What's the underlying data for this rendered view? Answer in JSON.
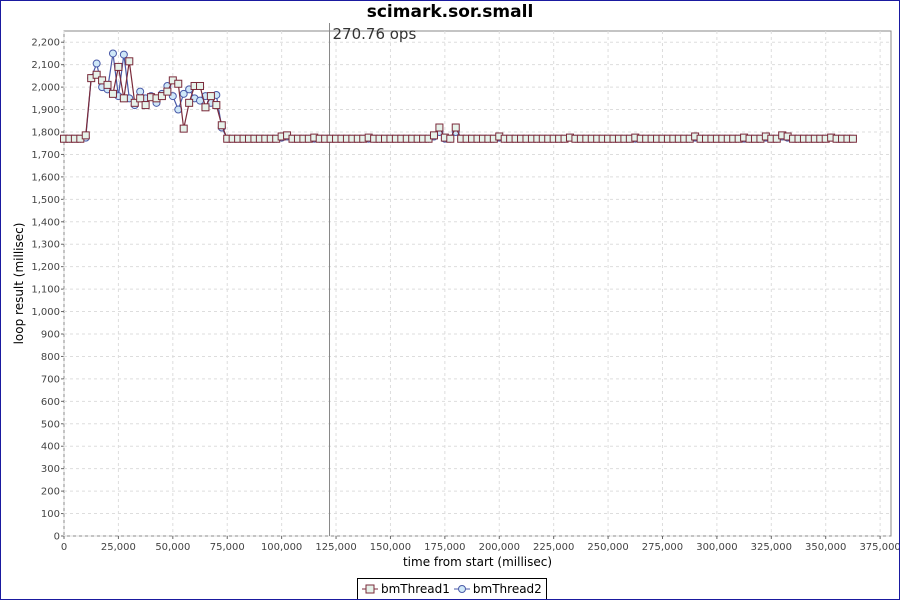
{
  "chart_data": {
    "type": "line",
    "title": "scimark.sor.small",
    "xlabel": "time from start (millisec)",
    "ylabel": "loop result (millisec)",
    "xlim": [
      0,
      380000
    ],
    "ylim": [
      0,
      2250
    ],
    "x_ticks": [
      0,
      25000,
      50000,
      75000,
      100000,
      125000,
      150000,
      175000,
      200000,
      225000,
      250000,
      275000,
      300000,
      325000,
      350000,
      375000
    ],
    "x_tick_labels": [
      "0",
      "25,000",
      "50,000",
      "75,000",
      "100,000",
      "125,000",
      "150,000",
      "175,000",
      "200,000",
      "225,000",
      "250,000",
      "275,000",
      "300,000",
      "325,000",
      "350,000",
      "375,000"
    ],
    "y_ticks": [
      0,
      100,
      200,
      300,
      400,
      500,
      600,
      700,
      800,
      900,
      1000,
      1100,
      1200,
      1300,
      1400,
      1500,
      1600,
      1700,
      1800,
      1900,
      2000,
      2100,
      2200
    ],
    "y_tick_labels": [
      "0",
      "100",
      "200",
      "300",
      "400",
      "500",
      "600",
      "700",
      "800",
      "900",
      "1,000",
      "1,100",
      "1,200",
      "1,300",
      "1,400",
      "1,500",
      "1,600",
      "1,700",
      "1,800",
      "1,900",
      "2,000",
      "2,100",
      "2,200"
    ],
    "grid": true,
    "legend_position": "bottom",
    "marker_line": {
      "x": 122000,
      "label": "270.76 ops"
    },
    "x": [
      0,
      2500,
      5000,
      7500,
      10000,
      12500,
      15000,
      17500,
      20000,
      22500,
      25000,
      27500,
      30000,
      32500,
      35000,
      37500,
      40000,
      42500,
      45000,
      47500,
      50000,
      52500,
      55000,
      57500,
      60000,
      62500,
      65000,
      67500,
      70000,
      72500,
      75000,
      77500,
      80000,
      82500,
      85000,
      87500,
      90000,
      92500,
      95000,
      97500,
      100000,
      102500,
      105000,
      107500,
      110000,
      112500,
      115000,
      117500,
      120000,
      122500,
      125000,
      127500,
      130000,
      132500,
      135000,
      137500,
      140000,
      142500,
      145000,
      147500,
      150000,
      152500,
      155000,
      157500,
      160000,
      162500,
      165000,
      167500,
      170000,
      172500,
      175000,
      177500,
      180000,
      182500,
      185000,
      187500,
      190000,
      192500,
      195000,
      197500,
      200000,
      202500,
      205000,
      207500,
      210000,
      212500,
      215000,
      217500,
      220000,
      222500,
      225000,
      227500,
      230000,
      232500,
      235000,
      237500,
      240000,
      242500,
      245000,
      247500,
      250000,
      252500,
      255000,
      257500,
      260000,
      262500,
      265000,
      267500,
      270000,
      272500,
      275000,
      277500,
      280000,
      282500,
      285000,
      287500,
      290000,
      292500,
      295000,
      297500,
      300000,
      302500,
      305000,
      307500,
      310000,
      312500,
      315000,
      317500,
      320000,
      322500,
      325000,
      327500,
      330000,
      332500,
      335000,
      337500,
      340000,
      342500,
      345000,
      347500,
      350000,
      352500,
      355000,
      357500,
      360000,
      362500
    ],
    "series": [
      {
        "name": "bmThread1",
        "color": "#7a2a3a",
        "marker": "square",
        "marker_fill": "#e6f2ea",
        "values": [
          1770,
          1770,
          1770,
          1770,
          1785,
          2040,
          2055,
          2030,
          2010,
          1970,
          2090,
          1950,
          2115,
          1930,
          1950,
          1920,
          1955,
          1950,
          1960,
          1980,
          2030,
          2015,
          1815,
          1930,
          2005,
          2005,
          1910,
          1960,
          1920,
          1830,
          1770,
          1770,
          1770,
          1770,
          1770,
          1770,
          1770,
          1770,
          1770,
          1770,
          1780,
          1785,
          1770,
          1770,
          1770,
          1770,
          1775,
          1770,
          1770,
          1770,
          1770,
          1770,
          1770,
          1770,
          1770,
          1770,
          1775,
          1770,
          1770,
          1770,
          1770,
          1770,
          1770,
          1770,
          1770,
          1770,
          1770,
          1770,
          1785,
          1820,
          1775,
          1770,
          1820,
          1770,
          1770,
          1770,
          1770,
          1770,
          1770,
          1770,
          1780,
          1770,
          1770,
          1770,
          1770,
          1770,
          1770,
          1770,
          1770,
          1770,
          1770,
          1770,
          1770,
          1775,
          1770,
          1770,
          1770,
          1770,
          1770,
          1770,
          1770,
          1770,
          1770,
          1770,
          1770,
          1775,
          1770,
          1770,
          1770,
          1770,
          1770,
          1770,
          1770,
          1770,
          1770,
          1770,
          1780,
          1770,
          1770,
          1770,
          1770,
          1770,
          1770,
          1770,
          1770,
          1775,
          1770,
          1770,
          1770,
          1780,
          1770,
          1770,
          1785,
          1780,
          1770,
          1770,
          1770,
          1770,
          1770,
          1770,
          1770,
          1775,
          1770,
          1770,
          1770,
          1770
        ]
      },
      {
        "name": "bmThread2",
        "color": "#4a5aa8",
        "marker": "circle",
        "marker_fill": "#cfe8f8",
        "values": [
          1770,
          1770,
          1770,
          1770,
          1775,
          2040,
          2105,
          2000,
          1990,
          2150,
          1960,
          2145,
          1950,
          1920,
          1980,
          1950,
          1960,
          1930,
          1970,
          2005,
          1960,
          1900,
          1970,
          1990,
          1950,
          1940,
          1960,
          1930,
          1965,
          1820,
          1770,
          1770,
          1770,
          1770,
          1770,
          1770,
          1770,
          1770,
          1770,
          1770,
          1775,
          1780,
          1770,
          1770,
          1770,
          1770,
          1770,
          1770,
          1770,
          1770,
          1770,
          1770,
          1770,
          1770,
          1770,
          1770,
          1770,
          1770,
          1770,
          1770,
          1770,
          1770,
          1770,
          1770,
          1770,
          1770,
          1770,
          1770,
          1780,
          1800,
          1770,
          1770,
          1800,
          1770,
          1770,
          1770,
          1770,
          1770,
          1770,
          1770,
          1775,
          1770,
          1770,
          1770,
          1770,
          1770,
          1770,
          1770,
          1770,
          1770,
          1770,
          1770,
          1770,
          1775,
          1770,
          1770,
          1770,
          1770,
          1770,
          1770,
          1770,
          1770,
          1770,
          1770,
          1770,
          1770,
          1770,
          1770,
          1770,
          1770,
          1770,
          1770,
          1770,
          1770,
          1770,
          1770,
          1775,
          1770,
          1770,
          1770,
          1770,
          1770,
          1770,
          1770,
          1770,
          1770,
          1770,
          1770,
          1770,
          1775,
          1770,
          1770,
          1780,
          1775,
          1770,
          1770,
          1770,
          1770,
          1770,
          1770,
          1770,
          1775,
          1770,
          1770,
          1770,
          1770
        ]
      }
    ]
  }
}
